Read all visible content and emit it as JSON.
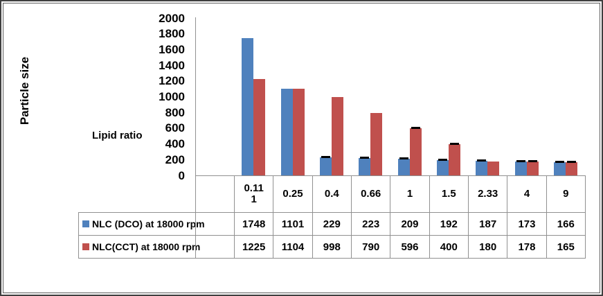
{
  "chart_data": {
    "type": "bar",
    "title": "",
    "ylabel": "Particle size",
    "xlabel": "Lipid ratio",
    "ylim": [
      0,
      2000
    ],
    "y_ticks": [
      0,
      200,
      400,
      600,
      800,
      1000,
      1200,
      1400,
      1600,
      1800,
      2000
    ],
    "grid": false,
    "legend_position": "data-table-rows",
    "data_table_shown": true,
    "categories": [
      "0.111",
      "0.25",
      "0.4",
      "0.66",
      "1",
      "1.5",
      "2.33",
      "4",
      "9"
    ],
    "categories_display": [
      "0.11\n1",
      "0.25",
      "0.4",
      "0.66",
      "1",
      "1.5",
      "2.33",
      "4",
      "9"
    ],
    "series": [
      {
        "name": "NLC (DCO) at 18000 rpm",
        "color": "#4F81BD",
        "values": [
          1748,
          1101,
          229,
          223,
          209,
          192,
          187,
          173,
          166
        ],
        "error_caps": [
          false,
          false,
          true,
          true,
          true,
          true,
          true,
          true,
          true
        ]
      },
      {
        "name": "NLC(CCT) at 18000 rpm",
        "color": "#C0504D",
        "values": [
          1225,
          1104,
          998,
          790,
          596,
          400,
          180,
          178,
          165
        ],
        "error_caps": [
          false,
          false,
          false,
          false,
          true,
          true,
          false,
          true,
          true
        ]
      }
    ]
  },
  "colors": {
    "series_blue": "#4F81BD",
    "series_red": "#C0504D",
    "axis_line": "#909090",
    "table_border": "#909090",
    "error_cap": "#000000",
    "text": "#000000",
    "background": "#FFFFFF"
  }
}
